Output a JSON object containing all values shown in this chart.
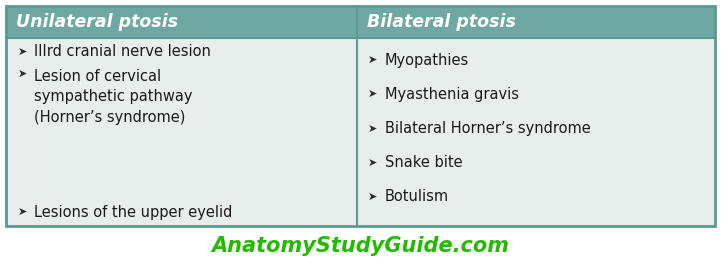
{
  "header_bg_color": "#6fa8a3",
  "body_bg_color": "#e8eeec",
  "outer_border_color": "#5a9a90",
  "divider_color": "#5a9a90",
  "col1_header": "Unilateral ptosis",
  "col2_header": "Bilateral ptosis",
  "col1_items": [
    "IIIrd cranial nerve lesion",
    "Lesion of cervical\nsympathetic pathway\n(Horner’s syndrome)",
    "Lesions of the upper eyelid"
  ],
  "col2_items": [
    "Myopathies",
    "Myasthenia gravis",
    "Bilateral Horner’s syndrome",
    "Snake bite",
    "Botulism"
  ],
  "header_text_color": "#ffffff",
  "body_text_color": "#1a1a1a",
  "header_fontsize": 12.5,
  "body_fontsize": 10.5,
  "footer_text": "AnatomyStudyGuide.com",
  "footer_color": "#22bb00",
  "footer_fontsize": 15,
  "arrow_color": "#2d2d2d",
  "fig_bg_color": "#ffffff",
  "fig_width": 7.21,
  "fig_height": 2.62,
  "dpi": 100
}
